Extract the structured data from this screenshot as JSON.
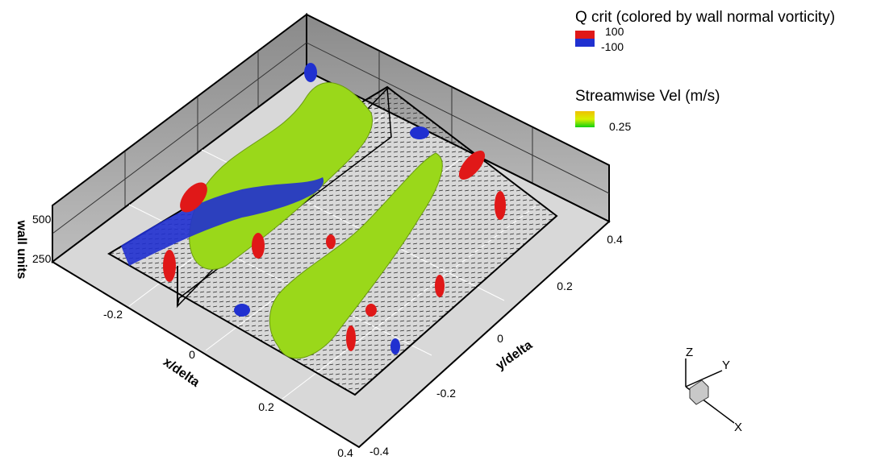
{
  "legend": {
    "q_title": "Q crit (colored by wall normal vorticity)",
    "q_max": "100",
    "q_min": "-100",
    "vel_title": "Streamwise Vel (m/s)",
    "vel_value": "0.25"
  },
  "axes": {
    "z": {
      "label": "wall units",
      "ticks": [
        "250",
        "500"
      ]
    },
    "x": {
      "label": "x/delta",
      "ticks": [
        "-0.2",
        "0",
        "0.2",
        "0.4"
      ]
    },
    "y": {
      "label": "y/delta",
      "ticks": [
        "-0.4",
        "-0.2",
        "0",
        "0.2",
        "0.4"
      ]
    }
  },
  "triad": {
    "z": "Z",
    "y": "Y",
    "x": "X"
  }
}
